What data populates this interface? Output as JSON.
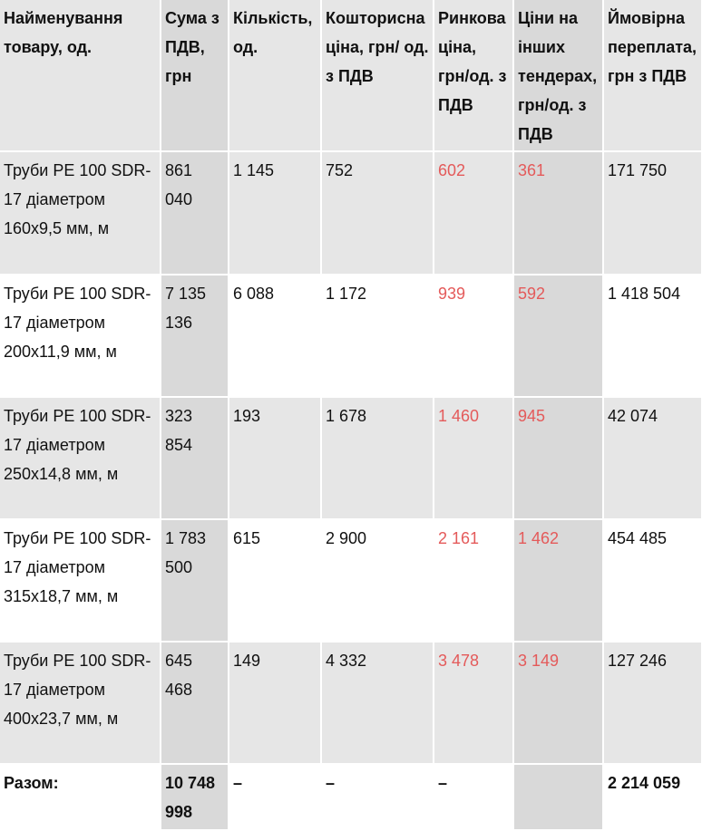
{
  "columns": [
    "Найменування товару, од.",
    "Сума з ПДВ, грн",
    "Кількість, од.",
    "Кошторисна ціна, грн/ од. з ПДВ",
    "Ринкова ціна, грн/од. з ПДВ",
    "Ціни на інших тендерах, грн/од. з ПДВ",
    "Ймовірна переплата, грн з ПДВ"
  ],
  "rows": [
    {
      "name": "Труби PE 100 SDR-17 діаметром 160х9,5 мм, м",
      "sum": "861 040",
      "qty": "1 145",
      "estimate": "752",
      "market": "602",
      "other": "361",
      "overpay": "171 750"
    },
    {
      "name": "Труби PE 100 SDR-17 діаметром 200х11,9 мм, м",
      "sum": "7 135 136",
      "qty": "6 088",
      "estimate": "1 172",
      "market": "939",
      "other": "592",
      "overpay": "1 418 504"
    },
    {
      "name": "Труби PE 100 SDR-17 діаметром 250х14,8 мм, м",
      "sum": "323 854",
      "qty": "193",
      "estimate": "1 678",
      "market": "1 460",
      "other": "945",
      "overpay": "42 074"
    },
    {
      "name": "Труби PE 100 SDR-17 діаметром 315х18,7 мм, м",
      "sum": "1 783 500",
      "qty": "615",
      "estimate": "2 900",
      "market": "2 161",
      "other": "1 462",
      "overpay": "454 485"
    },
    {
      "name": "Труби PE 100 SDR-17 діаметром 400х23,7 мм, м",
      "sum": "645 468",
      "qty": "149",
      "estimate": "4 332",
      "market": "3 478",
      "other": "3 149",
      "overpay": "127 246"
    }
  ],
  "total": {
    "label": "Разом:",
    "sum": "10 748 998",
    "qty": "–",
    "estimate": "–",
    "market": "–",
    "other": "",
    "overpay": "2 214 059"
  },
  "colors": {
    "highlight_text": "#e45a5a",
    "row_shade": "#e6e6e6",
    "column_shade": "#d9d9d9"
  }
}
